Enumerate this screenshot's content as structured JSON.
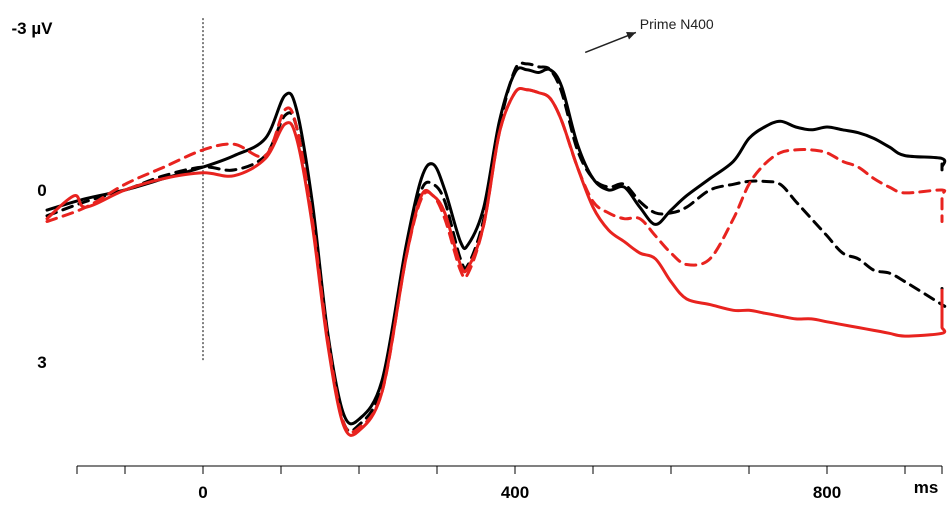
{
  "chart_data": {
    "type": "line",
    "title": "",
    "xlabel": "ms",
    "ylabel": "-3 µV",
    "xlim": [
      -200,
      1180
    ],
    "ylim": [
      -3,
      4.9
    ],
    "y_inverted": true,
    "grid": false,
    "x_ticks": [
      {
        "value": 0,
        "label": "0"
      },
      {
        "value": 400,
        "label": "400"
      },
      {
        "value": 800,
        "label": "800"
      }
    ],
    "y_ticks": [
      {
        "value": 0,
        "label": "0"
      },
      {
        "value": 3,
        "label": "3"
      }
    ],
    "annotation": {
      "text": "Prime N400",
      "x": 560,
      "y": -2.9,
      "arrow_from": [
        490,
        -2.4
      ],
      "arrow_to": [
        555,
        -2.75
      ]
    },
    "onset_line": {
      "x": 0,
      "y_from": -3,
      "y_to": 3,
      "style": "dotted"
    },
    "series": [
      {
        "color": "#000000",
        "dash": "solid",
        "x": [
          -200,
          -150,
          -100,
          -50,
          0,
          40,
          80,
          105,
          120,
          140,
          160,
          180,
          200,
          230,
          260,
          280,
          295,
          310,
          330,
          340,
          360,
          380,
          400,
          415,
          430,
          445,
          460,
          480,
          500,
          520,
          540,
          560,
          580,
          600,
          620,
          650,
          680,
          700,
          720,
          740,
          760,
          780,
          800,
          820,
          840,
          860,
          880,
          900,
          950,
          1000,
          1050,
          1100,
          1150,
          1180
        ],
        "y": [
          0.35,
          0.15,
          0.0,
          -0.2,
          -0.4,
          -0.6,
          -0.9,
          -1.65,
          -1.4,
          0.2,
          2.5,
          3.9,
          4.0,
          3.3,
          1.0,
          -0.2,
          -0.45,
          0.0,
          0.9,
          0.95,
          0.3,
          -1.2,
          -2.05,
          -2.1,
          -2.05,
          -2.1,
          -1.8,
          -0.8,
          -0.2,
          0.0,
          -0.05,
          0.3,
          0.6,
          0.35,
          0.1,
          -0.2,
          -0.5,
          -0.9,
          -1.1,
          -1.2,
          -1.1,
          -1.05,
          -1.1,
          -1.05,
          -1.0,
          -0.9,
          -0.75,
          -0.6,
          -0.55,
          -0.4,
          -0.35,
          -0.4,
          -0.45,
          -0.45
        ]
      },
      {
        "color": "#000000",
        "dash": "dashed",
        "x": [
          -200,
          -150,
          -100,
          -50,
          0,
          40,
          80,
          105,
          120,
          140,
          160,
          180,
          200,
          230,
          260,
          280,
          295,
          310,
          330,
          340,
          360,
          380,
          400,
          415,
          430,
          445,
          460,
          480,
          500,
          520,
          540,
          560,
          580,
          600,
          620,
          650,
          680,
          700,
          720,
          740,
          760,
          780,
          800,
          820,
          840,
          860,
          880,
          900,
          950,
          1000,
          1050,
          1100,
          1150,
          1180
        ],
        "y": [
          0.45,
          0.2,
          0.0,
          -0.25,
          -0.4,
          -0.35,
          -0.6,
          -1.3,
          -1.1,
          0.4,
          2.6,
          4.05,
          4.1,
          3.4,
          1.1,
          0.0,
          -0.1,
          0.2,
          1.2,
          1.3,
          0.5,
          -1.1,
          -2.1,
          -2.2,
          -2.15,
          -2.1,
          -1.7,
          -0.7,
          -0.2,
          -0.05,
          -0.1,
          0.2,
          0.4,
          0.4,
          0.3,
          0.0,
          -0.1,
          -0.15,
          -0.15,
          -0.1,
          0.2,
          0.5,
          0.8,
          1.1,
          1.2,
          1.4,
          1.45,
          1.6,
          2.0,
          2.0,
          2.0,
          2.0,
          1.8,
          1.7
        ]
      },
      {
        "color": "#e8231f",
        "dash": "solid",
        "x": [
          -200,
          -165,
          -150,
          -100,
          -50,
          0,
          40,
          80,
          105,
          120,
          140,
          160,
          180,
          200,
          230,
          260,
          280,
          295,
          310,
          330,
          340,
          360,
          380,
          400,
          415,
          430,
          445,
          460,
          480,
          500,
          520,
          540,
          560,
          580,
          600,
          620,
          650,
          680,
          700,
          720,
          740,
          760,
          780,
          800,
          820,
          840,
          860,
          880,
          900,
          950,
          1000,
          1050,
          1100,
          1150,
          1180
        ],
        "y": [
          0.5,
          0.1,
          0.3,
          0.0,
          -0.2,
          -0.3,
          -0.25,
          -0.55,
          -1.15,
          -0.9,
          0.6,
          2.7,
          4.1,
          4.2,
          3.5,
          1.2,
          0.1,
          0.1,
          0.4,
          1.3,
          1.35,
          0.6,
          -1.0,
          -1.7,
          -1.75,
          -1.7,
          -1.6,
          -1.2,
          -0.4,
          0.3,
          0.7,
          0.9,
          1.1,
          1.2,
          1.6,
          1.9,
          2.0,
          2.1,
          2.1,
          2.15,
          2.2,
          2.25,
          2.25,
          2.3,
          2.35,
          2.4,
          2.45,
          2.5,
          2.55,
          2.5,
          2.4,
          2.35,
          2.25,
          1.8,
          1.75
        ]
      },
      {
        "color": "#e8231f",
        "dash": "dashed",
        "x": [
          -200,
          -150,
          -100,
          -50,
          0,
          40,
          80,
          105,
          120,
          140,
          160,
          180,
          200,
          230,
          260,
          280,
          295,
          310,
          330,
          340,
          360,
          380,
          400,
          415,
          430,
          445,
          460,
          480,
          500,
          520,
          540,
          560,
          580,
          600,
          620,
          650,
          680,
          700,
          720,
          740,
          760,
          780,
          800,
          820,
          840,
          860,
          880,
          900,
          950,
          1000,
          1050,
          1100,
          1150,
          1180
        ],
        "y": [
          0.55,
          0.3,
          -0.1,
          -0.4,
          -0.7,
          -0.8,
          -0.6,
          -1.4,
          -1.1,
          0.5,
          2.6,
          4.05,
          4.15,
          3.5,
          1.2,
          0.15,
          0.1,
          0.5,
          1.4,
          1.45,
          0.6,
          -1.0,
          -1.7,
          -1.75,
          -1.7,
          -1.6,
          -1.2,
          -0.4,
          0.2,
          0.4,
          0.5,
          0.5,
          0.8,
          1.1,
          1.3,
          1.2,
          0.5,
          -0.1,
          -0.45,
          -0.65,
          -0.7,
          -0.7,
          -0.65,
          -0.5,
          -0.4,
          -0.2,
          -0.05,
          0.05,
          0.0,
          0.1,
          0.4,
          0.55,
          0.45,
          0.45
        ]
      }
    ]
  }
}
